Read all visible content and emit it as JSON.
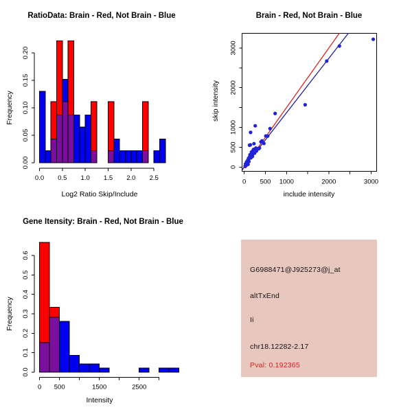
{
  "chart_data": [
    {
      "id": "ratio_histogram",
      "type": "bar",
      "subtype": "overlaid-histogram",
      "title": "RatioData: Brain - Red, Not Brain - Blue",
      "xlabel": "Log2 Ratio Skip/Include",
      "ylabel": "Frequency",
      "bin_width": 0.125,
      "xlim": [
        0,
        2.75
      ],
      "ylim": [
        0,
        0.222
      ],
      "grid": false,
      "x_ticks": [
        0,
        0.5,
        1.0,
        1.5,
        2.0,
        2.5
      ],
      "x_tick_labels": [
        "0.0",
        "0.5",
        "1.0",
        "1.5",
        "2.0",
        "2.5"
      ],
      "y_ticks": [
        0,
        0.05,
        0.1,
        0.15,
        0.2
      ],
      "y_tick_labels": [
        "0.00",
        "0.05",
        "0.10",
        "0.15",
        "0.20"
      ],
      "bin_starts": [
        0,
        0.125,
        0.25,
        0.375,
        0.5,
        0.625,
        0.75,
        0.875,
        1.0,
        1.125,
        1.25,
        1.375,
        1.5,
        1.625,
        1.75,
        1.875,
        2.0,
        2.125,
        2.25,
        2.375,
        2.5,
        2.625
      ],
      "series": [
        {
          "name": "Brain",
          "color": "#FF0000",
          "values": [
            0,
            0,
            0.111,
            0.222,
            0.111,
            0.222,
            0,
            0,
            0,
            0.111,
            0,
            0,
            0.111,
            0,
            0,
            0,
            0,
            0,
            0.111,
            0,
            0,
            0
          ]
        },
        {
          "name": "Not Brain",
          "color": "#0000EE",
          "values": [
            0.13,
            0.022,
            0.043,
            0.087,
            0.152,
            0.087,
            0.087,
            0.065,
            0.087,
            0.022,
            0,
            0,
            0.022,
            0.043,
            0.022,
            0.022,
            0.022,
            0.022,
            0.022,
            0,
            0.022,
            0.043
          ]
        }
      ],
      "overlap_color": "#7A0F9E"
    },
    {
      "id": "intensity_scatter",
      "type": "scatter",
      "title": "Brain - Red, Not Brain - Blue",
      "xlabel": "include intensity",
      "ylabel": "skip intensity",
      "xlim": [
        -130,
        3300
      ],
      "ylim": [
        -140,
        3380
      ],
      "grid": false,
      "x_ticks": [
        0,
        500,
        1000,
        1500,
        2000,
        2500,
        3000
      ],
      "x_tick_labels": [
        "0",
        "500",
        "1000",
        "",
        "2000",
        "",
        "3000"
      ],
      "y_ticks": [
        0,
        500,
        1000,
        1500,
        2000,
        2500,
        3000
      ],
      "y_tick_labels": [
        "0",
        "500",
        "1000",
        "",
        "2000",
        "",
        "3000"
      ],
      "series": [
        {
          "name": "Not Brain",
          "color": "#2222D6",
          "points": [
            [
              20,
              25
            ],
            [
              30,
              80
            ],
            [
              45,
              45
            ],
            [
              55,
              130
            ],
            [
              65,
              95
            ],
            [
              80,
              165
            ],
            [
              90,
              70
            ],
            [
              100,
              215
            ],
            [
              110,
              140
            ],
            [
              120,
              250
            ],
            [
              125,
              550
            ],
            [
              135,
              310
            ],
            [
              145,
              560
            ],
            [
              150,
              875
            ],
            [
              160,
              235
            ],
            [
              170,
              380
            ],
            [
              180,
              320
            ],
            [
              195,
              270
            ],
            [
              205,
              415
            ],
            [
              220,
              445
            ],
            [
              230,
              590
            ],
            [
              245,
              350
            ],
            [
              255,
              455
            ],
            [
              260,
              1040
            ],
            [
              275,
              480
            ],
            [
              290,
              405
            ],
            [
              320,
              465
            ],
            [
              340,
              460
            ],
            [
              360,
              480
            ],
            [
              395,
              635
            ],
            [
              420,
              660
            ],
            [
              465,
              595
            ],
            [
              510,
              785
            ],
            [
              555,
              780
            ],
            [
              610,
              970
            ],
            [
              730,
              1350
            ],
            [
              1440,
              1570
            ],
            [
              1950,
              2670
            ],
            [
              2250,
              3050
            ],
            [
              3050,
              3220
            ]
          ]
        },
        {
          "name": "Brain",
          "color": "#E81414",
          "points": [
            [
              25,
              15
            ],
            [
              40,
              45
            ],
            [
              85,
              125
            ]
          ]
        }
      ],
      "lines": [
        {
          "name": "brain-fit-line",
          "color": "#E02020",
          "slope": 1.5,
          "intercept": 0
        },
        {
          "name": "notbrain-fit-line",
          "color": "#2020AA",
          "slope": 1.37,
          "intercept": 0
        }
      ]
    },
    {
      "id": "gene_intensity_histogram",
      "type": "bar",
      "subtype": "overlaid-histogram",
      "title": "Gene Itensity: Brain - Red, Not Brain - Blue",
      "xlabel": "Intensity",
      "ylabel": "Frequency",
      "bin_width": 250,
      "xlim": [
        0,
        3500
      ],
      "ylim": [
        0,
        0.667
      ],
      "grid": false,
      "x_ticks": [
        0,
        500,
        1000,
        1500,
        2000,
        2500,
        3000
      ],
      "x_tick_labels": [
        "0",
        "500",
        "",
        "1500",
        "",
        "2500",
        ""
      ],
      "y_ticks": [
        0,
        0.1,
        0.2,
        0.3,
        0.4,
        0.5,
        0.6
      ],
      "y_tick_labels": [
        "0.0",
        "0.1",
        "0.2",
        "0.3",
        "0.4",
        "0.5",
        "0.6"
      ],
      "bin_starts": [
        0,
        250,
        500,
        750,
        1000,
        1250,
        1500,
        1750,
        2000,
        2250,
        2500,
        2750,
        3000,
        3250
      ],
      "series": [
        {
          "name": "Brain",
          "color": "#FF0000",
          "values": [
            0.667,
            0.333,
            0,
            0,
            0,
            0,
            0,
            0,
            0,
            0,
            0,
            0,
            0,
            0
          ]
        },
        {
          "name": "Not Brain",
          "color": "#0000EE",
          "values": [
            0.152,
            0.283,
            0.261,
            0.087,
            0.043,
            0.043,
            0.022,
            0,
            0,
            0,
            0.022,
            0,
            0.022,
            0.022
          ]
        }
      ],
      "overlap_color": "#7A0F9E"
    }
  ],
  "info_panel": {
    "background": "#E8C7BF",
    "probe_id": "G6988471@J925273@j_at",
    "splice_type": "altTxEnd",
    "gene": "Ii",
    "location": "chr18.12282-2.17",
    "pval": "Pval: 0.192365",
    "pval_color": "#D42020",
    "text_color": "#111111"
  }
}
